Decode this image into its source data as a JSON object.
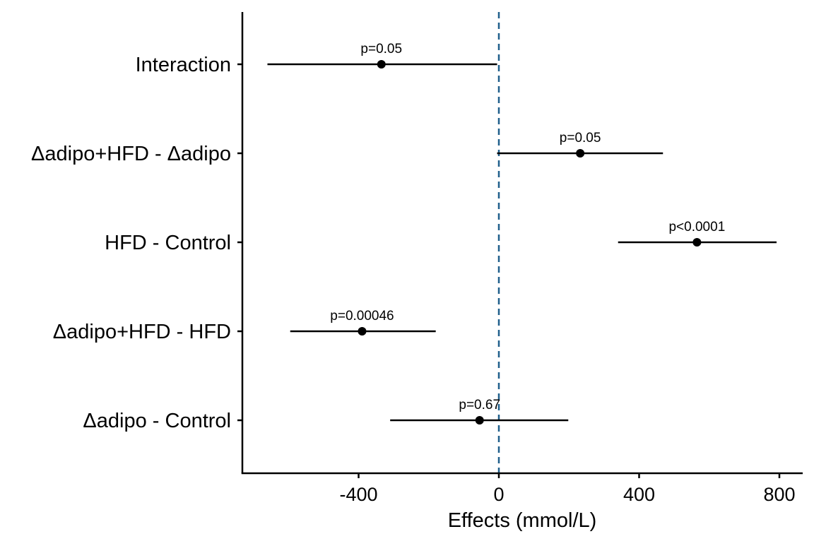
{
  "chart_data": {
    "type": "forest",
    "xlabel": "Effects (mmol/L)",
    "xticks": [
      -400,
      0,
      400,
      800
    ],
    "xtick_labels": [
      "-400",
      "0",
      "400",
      "800"
    ],
    "xlim": [
      -735,
      860
    ],
    "reference_line": {
      "x": 0,
      "style": "dashed",
      "color": "#1f5f8b"
    },
    "grid": false,
    "rows": [
      {
        "label": "Interaction",
        "estimate": -335,
        "lower": -660,
        "upper": -5,
        "p_label": "p=0.05"
      },
      {
        "label": "Δadipo+HFD - Δadipo",
        "estimate": 232,
        "lower": -5,
        "upper": 468,
        "p_label": "p=0.05"
      },
      {
        "label": "HFD - Control",
        "estimate": 565,
        "lower": 340,
        "upper": 792,
        "p_label": "p<0.0001"
      },
      {
        "label": "Δadipo+HFD - HFD",
        "estimate": -390,
        "lower": -595,
        "upper": -180,
        "p_label": "p=0.00046"
      },
      {
        "label": "Δadipo - Control",
        "estimate": -55,
        "lower": -310,
        "upper": 198,
        "p_label": "p=0.67"
      }
    ]
  },
  "colors": {
    "point": "#000000",
    "axis": "#000000",
    "reference_line": "#1f5f8b"
  }
}
